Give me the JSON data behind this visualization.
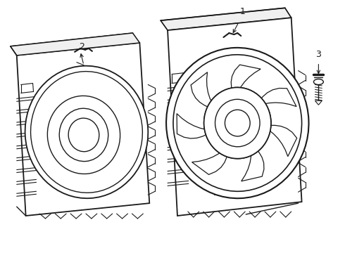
{
  "background_color": "#ffffff",
  "line_color": "#1a1a1a",
  "line_width": 1.0,
  "label_1": "1",
  "label_2": "2",
  "label_3": "3",
  "label_fontsize": 9,
  "fig_width": 4.9,
  "fig_height": 3.6,
  "dpi": 100
}
